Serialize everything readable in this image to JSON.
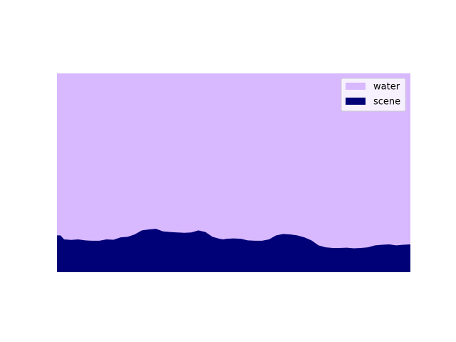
{
  "chart_data": {
    "type": "area",
    "axes_visible": false,
    "x_range": [
      0,
      100
    ],
    "y_range": [
      0,
      100
    ],
    "legend_placement": "top-right",
    "series": [
      {
        "name": "water",
        "color": "#d8b8ff",
        "fill": "full-region"
      },
      {
        "name": "scene",
        "color": "#000077",
        "fill": "to-bottom",
        "profile": {
          "x": [
            0,
            1,
            2,
            4,
            6,
            8,
            10,
            12,
            14,
            16,
            18,
            20,
            22,
            24,
            26,
            28,
            30,
            32,
            34,
            36,
            38,
            40,
            42,
            44,
            46,
            47,
            48,
            50,
            52,
            54,
            56,
            58,
            60,
            62,
            64,
            66,
            68,
            70,
            72,
            74,
            76,
            78,
            80,
            82,
            84,
            86,
            88,
            90,
            92,
            94,
            96,
            98,
            100
          ],
          "y": [
            18.5,
            18.5,
            16.5,
            16.2,
            16.5,
            16.0,
            15.8,
            15.8,
            16.5,
            16.3,
            17.5,
            17.8,
            19.0,
            21.0,
            21.5,
            21.8,
            20.5,
            20.2,
            20.0,
            19.8,
            20.0,
            21.0,
            20.2,
            17.8,
            16.8,
            16.5,
            16.8,
            17.0,
            16.8,
            16.0,
            15.8,
            15.8,
            16.5,
            18.5,
            19.2,
            19.0,
            18.5,
            17.5,
            16.0,
            13.5,
            12.5,
            12.2,
            12.2,
            12.3,
            12.0,
            12.2,
            12.5,
            13.5,
            13.8,
            14.0,
            13.5,
            13.8,
            14.0
          ]
        }
      }
    ]
  }
}
